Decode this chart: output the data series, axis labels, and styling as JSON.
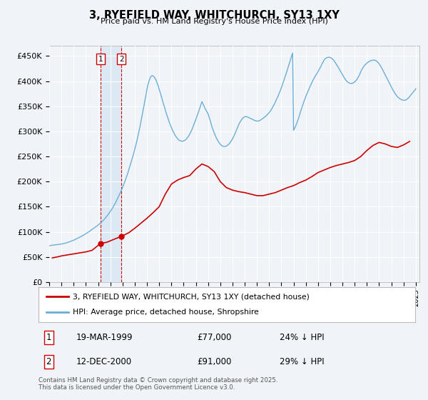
{
  "title": "3, RYEFIELD WAY, WHITCHURCH, SY13 1XY",
  "subtitle": "Price paid vs. HM Land Registry's House Price Index (HPI)",
  "ylim": [
    0,
    470000
  ],
  "yticks": [
    0,
    50000,
    100000,
    150000,
    200000,
    250000,
    300000,
    350000,
    400000,
    450000
  ],
  "ytick_labels": [
    "£0",
    "£50K",
    "£100K",
    "£150K",
    "£200K",
    "£250K",
    "£300K",
    "£350K",
    "£400K",
    "£450K"
  ],
  "hpi_color": "#6baed6",
  "price_color": "#cc0000",
  "background_color": "#f0f4f8",
  "plot_bg_color": "#f0f4f8",
  "grid_color": "#ffffff",
  "shade_color": "#dce9f5",
  "vline_color": "#cc0000",
  "legend_label_price": "3, RYEFIELD WAY, WHITCHURCH, SY13 1XY (detached house)",
  "legend_label_hpi": "HPI: Average price, detached house, Shropshire",
  "annotation1_date": "19-MAR-1999",
  "annotation1_price": "£77,000",
  "annotation1_hpi": "24% ↓ HPI",
  "annotation1_value": 77000,
  "annotation1_year": 1999.21,
  "annotation2_date": "12-DEC-2000",
  "annotation2_price": "£91,000",
  "annotation2_hpi": "29% ↓ HPI",
  "annotation2_value": 91000,
  "annotation2_year": 2000.92,
  "footer": "Contains HM Land Registry data © Crown copyright and database right 2025.\nThis data is licensed under the Open Government Licence v3.0.",
  "hpi_years": [
    1995.0,
    1995.08,
    1995.17,
    1995.25,
    1995.33,
    1995.42,
    1995.5,
    1995.58,
    1995.67,
    1995.75,
    1995.83,
    1995.92,
    1996.0,
    1996.08,
    1996.17,
    1996.25,
    1996.33,
    1996.42,
    1996.5,
    1996.58,
    1996.67,
    1996.75,
    1996.83,
    1996.92,
    1997.0,
    1997.08,
    1997.17,
    1997.25,
    1997.33,
    1997.42,
    1997.5,
    1997.58,
    1997.67,
    1997.75,
    1997.83,
    1997.92,
    1998.0,
    1998.08,
    1998.17,
    1998.25,
    1998.33,
    1998.42,
    1998.5,
    1998.58,
    1998.67,
    1998.75,
    1998.83,
    1998.92,
    1999.0,
    1999.08,
    1999.17,
    1999.25,
    1999.33,
    1999.42,
    1999.5,
    1999.58,
    1999.67,
    1999.75,
    1999.83,
    1999.92,
    2000.0,
    2000.08,
    2000.17,
    2000.25,
    2000.33,
    2000.42,
    2000.5,
    2000.58,
    2000.67,
    2000.75,
    2000.83,
    2000.92,
    2001.0,
    2001.08,
    2001.17,
    2001.25,
    2001.33,
    2001.42,
    2001.5,
    2001.58,
    2001.67,
    2001.75,
    2001.83,
    2001.92,
    2002.0,
    2002.08,
    2002.17,
    2002.25,
    2002.33,
    2002.42,
    2002.5,
    2002.58,
    2002.67,
    2002.75,
    2002.83,
    2002.92,
    2003.0,
    2003.08,
    2003.17,
    2003.25,
    2003.33,
    2003.42,
    2003.5,
    2003.58,
    2003.67,
    2003.75,
    2003.83,
    2003.92,
    2004.0,
    2004.08,
    2004.17,
    2004.25,
    2004.33,
    2004.42,
    2004.5,
    2004.58,
    2004.67,
    2004.75,
    2004.83,
    2004.92,
    2005.0,
    2005.08,
    2005.17,
    2005.25,
    2005.33,
    2005.42,
    2005.5,
    2005.58,
    2005.67,
    2005.75,
    2005.83,
    2005.92,
    2006.0,
    2006.08,
    2006.17,
    2006.25,
    2006.33,
    2006.42,
    2006.5,
    2006.58,
    2006.67,
    2006.75,
    2006.83,
    2006.92,
    2007.0,
    2007.08,
    2007.17,
    2007.25,
    2007.33,
    2007.42,
    2007.5,
    2007.58,
    2007.67,
    2007.75,
    2007.83,
    2007.92,
    2008.0,
    2008.08,
    2008.17,
    2008.25,
    2008.33,
    2008.42,
    2008.5,
    2008.58,
    2008.67,
    2008.75,
    2008.83,
    2008.92,
    2009.0,
    2009.08,
    2009.17,
    2009.25,
    2009.33,
    2009.42,
    2009.5,
    2009.58,
    2009.67,
    2009.75,
    2009.83,
    2009.92,
    2010.0,
    2010.08,
    2010.17,
    2010.25,
    2010.33,
    2010.42,
    2010.5,
    2010.58,
    2010.67,
    2010.75,
    2010.83,
    2010.92,
    2011.0,
    2011.08,
    2011.17,
    2011.25,
    2011.33,
    2011.42,
    2011.5,
    2011.58,
    2011.67,
    2011.75,
    2011.83,
    2011.92,
    2012.0,
    2012.08,
    2012.17,
    2012.25,
    2012.33,
    2012.42,
    2012.5,
    2012.58,
    2012.67,
    2012.75,
    2012.83,
    2012.92,
    2013.0,
    2013.08,
    2013.17,
    2013.25,
    2013.33,
    2013.42,
    2013.5,
    2013.58,
    2013.67,
    2013.75,
    2013.83,
    2013.92,
    2014.0,
    2014.08,
    2014.17,
    2014.25,
    2014.33,
    2014.42,
    2014.5,
    2014.58,
    2014.67,
    2014.75,
    2014.83,
    2014.92,
    2015.0,
    2015.08,
    2015.17,
    2015.25,
    2015.33,
    2015.42,
    2015.5,
    2015.58,
    2015.67,
    2015.75,
    2015.83,
    2015.92,
    2016.0,
    2016.08,
    2016.17,
    2016.25,
    2016.33,
    2016.42,
    2016.5,
    2016.58,
    2016.67,
    2016.75,
    2016.83,
    2016.92,
    2017.0,
    2017.08,
    2017.17,
    2017.25,
    2017.33,
    2017.42,
    2017.5,
    2017.58,
    2017.67,
    2017.75,
    2017.83,
    2017.92,
    2018.0,
    2018.08,
    2018.17,
    2018.25,
    2018.33,
    2018.42,
    2018.5,
    2018.58,
    2018.67,
    2018.75,
    2018.83,
    2018.92,
    2019.0,
    2019.08,
    2019.17,
    2019.25,
    2019.33,
    2019.42,
    2019.5,
    2019.58,
    2019.67,
    2019.75,
    2019.83,
    2019.92,
    2020.0,
    2020.08,
    2020.17,
    2020.25,
    2020.33,
    2020.42,
    2020.5,
    2020.58,
    2020.67,
    2020.75,
    2020.83,
    2020.92,
    2021.0,
    2021.08,
    2021.17,
    2021.25,
    2021.33,
    2021.42,
    2021.5,
    2021.58,
    2021.67,
    2021.75,
    2021.83,
    2021.92,
    2022.0,
    2022.08,
    2022.17,
    2022.25,
    2022.33,
    2022.42,
    2022.5,
    2022.58,
    2022.67,
    2022.75,
    2022.83,
    2022.92,
    2023.0,
    2023.08,
    2023.17,
    2023.25,
    2023.33,
    2023.42,
    2023.5,
    2023.58,
    2023.67,
    2023.75,
    2023.83,
    2023.92,
    2024.0,
    2024.08,
    2024.17,
    2024.25,
    2024.33,
    2024.42,
    2024.5,
    2024.58,
    2024.67,
    2024.75,
    2024.83,
    2024.92,
    2025.0
  ],
  "hpi_values": [
    72000,
    72500,
    73000,
    73200,
    73500,
    73800,
    74000,
    74300,
    74600,
    74800,
    75000,
    75300,
    75600,
    76000,
    76500,
    77000,
    77500,
    78000,
    78800,
    79500,
    80200,
    81000,
    81800,
    82500,
    83300,
    84200,
    85200,
    86200,
    87200,
    88200,
    89300,
    90400,
    91500,
    92700,
    93900,
    95000,
    96200,
    97500,
    98800,
    100200,
    101600,
    103000,
    104500,
    106000,
    107500,
    109000,
    110500,
    112000,
    113500,
    115000,
    116800,
    118600,
    120500,
    122500,
    124800,
    127000,
    129500,
    132000,
    134800,
    137500,
    140500,
    143500,
    146800,
    150200,
    153800,
    157500,
    161500,
    165500,
    169800,
    174200,
    178500,
    183000,
    188000,
    193000,
    198500,
    204000,
    210000,
    216000,
    222500,
    229000,
    235800,
    242500,
    249500,
    256500,
    264000,
    272000,
    280500,
    289500,
    298800,
    308500,
    318500,
    329000,
    339800,
    350500,
    361500,
    372500,
    383800,
    393000,
    400500,
    406000,
    409500,
    411000,
    410500,
    408500,
    405500,
    401500,
    396500,
    390500,
    384000,
    377500,
    370500,
    363500,
    356500,
    349500,
    342500,
    336000,
    329500,
    323500,
    317800,
    312500,
    307500,
    302800,
    298500,
    294500,
    291000,
    288000,
    285500,
    283500,
    282000,
    281000,
    280500,
    280500,
    281000,
    282000,
    283500,
    285500,
    288000,
    291000,
    294500,
    298500,
    303000,
    308000,
    313200,
    318500,
    324000,
    329500,
    335200,
    341000,
    347000,
    353000,
    359200,
    355000,
    350500,
    346000,
    342000,
    338500,
    335000,
    329000,
    322000,
    315000,
    308500,
    302500,
    297000,
    292000,
    287500,
    283500,
    280000,
    277000,
    274500,
    272500,
    271000,
    270200,
    269800,
    270000,
    270800,
    272000,
    273800,
    276000,
    278500,
    281500,
    285000,
    289000,
    293500,
    298000,
    303000,
    308000,
    313000,
    317000,
    320500,
    323500,
    326000,
    328000,
    329000,
    329500,
    329000,
    328500,
    327500,
    326500,
    325500,
    324500,
    323500,
    322500,
    321500,
    321000,
    320500,
    320500,
    321000,
    322000,
    323000,
    324500,
    326000,
    327500,
    329200,
    331000,
    333000,
    335000,
    337200,
    340000,
    343000,
    346500,
    350000,
    354000,
    358000,
    362500,
    367000,
    371500,
    376500,
    381500,
    387000,
    392500,
    398500,
    404500,
    410800,
    417000,
    423500,
    430000,
    436500,
    443000,
    449500,
    456000,
    302000,
    306000,
    310500,
    315500,
    321000,
    327000,
    333500,
    340000,
    346500,
    352500,
    358500,
    364000,
    369500,
    374500,
    379500,
    384000,
    388500,
    393000,
    397500,
    401500,
    405500,
    409000,
    412500,
    415500,
    419000,
    422500,
    426500,
    430500,
    434500,
    438500,
    442500,
    444500,
    446000,
    447000,
    447500,
    447500,
    447000,
    446000,
    444500,
    442500,
    440000,
    437000,
    433500,
    430500,
    427000,
    423500,
    420000,
    416500,
    413000,
    409500,
    406000,
    403000,
    400500,
    398500,
    397000,
    396000,
    395500,
    395500,
    396000,
    397000,
    398500,
    400500,
    403000,
    406000,
    409500,
    414000,
    419000,
    423000,
    426500,
    429500,
    432000,
    434000,
    436000,
    437500,
    439000,
    440000,
    441000,
    441500,
    441800,
    442000,
    441500,
    440500,
    439000,
    437000,
    434500,
    431500,
    428000,
    424500,
    420500,
    416500,
    412500,
    408500,
    404500,
    400500,
    396500,
    392500,
    388500,
    384500,
    381000,
    377500,
    374500,
    371500,
    369000,
    367000,
    365500,
    364000,
    363000,
    362500,
    362000,
    362000,
    362500,
    363500,
    365000,
    367000,
    369500,
    372000,
    374500,
    377000,
    379500,
    382000,
    385000
  ],
  "price_years": [
    1995.25,
    1995.67,
    1996.0,
    1996.5,
    1997.0,
    1997.5,
    1998.0,
    1998.5,
    1999.21,
    1999.7,
    2000.0,
    2000.5,
    2000.92,
    2001.5,
    2002.0,
    2002.5,
    2003.0,
    2003.5,
    2004.0,
    2004.5,
    2005.0,
    2005.5,
    2006.0,
    2006.5,
    2007.0,
    2007.5,
    2008.0,
    2008.5,
    2009.0,
    2009.5,
    2010.0,
    2010.5,
    2011.0,
    2011.5,
    2012.0,
    2012.5,
    2013.0,
    2013.5,
    2014.0,
    2014.5,
    2015.0,
    2015.5,
    2016.0,
    2016.5,
    2017.0,
    2017.5,
    2018.0,
    2018.5,
    2019.0,
    2019.5,
    2020.0,
    2020.5,
    2021.0,
    2021.5,
    2022.0,
    2022.5,
    2023.0,
    2023.5,
    2024.0,
    2024.5
  ],
  "price_values": [
    48000,
    50000,
    52000,
    54000,
    56000,
    58000,
    60000,
    63000,
    77000,
    79000,
    82000,
    87000,
    91000,
    98000,
    107000,
    117000,
    127000,
    138000,
    150000,
    175000,
    195000,
    203000,
    208000,
    212000,
    225000,
    235000,
    230000,
    220000,
    200000,
    188000,
    183000,
    180000,
    178000,
    175000,
    172000,
    172000,
    175000,
    178000,
    183000,
    188000,
    192000,
    198000,
    203000,
    210000,
    218000,
    223000,
    228000,
    232000,
    235000,
    238000,
    242000,
    250000,
    262000,
    272000,
    278000,
    275000,
    270000,
    268000,
    273000,
    280000
  ]
}
